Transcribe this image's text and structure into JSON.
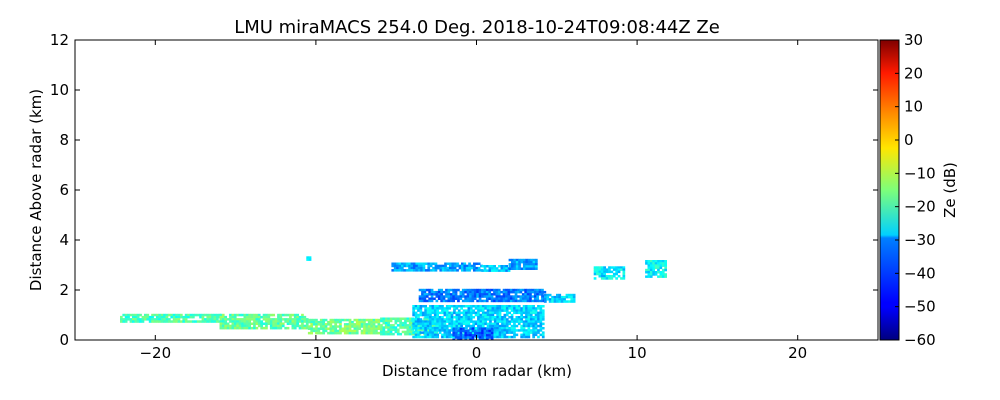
{
  "chart_data": {
    "type": "heatmap",
    "title": "LMU miraMACS 254.0 Deg. 2018-10-24T09:08:44Z  Ze",
    "xlabel": "Distance from radar (km)",
    "ylabel": "Distance Above radar  (km)",
    "xlim": [
      -25,
      25
    ],
    "ylim": [
      0,
      12
    ],
    "xticks": [
      -20,
      -10,
      0,
      10,
      20
    ],
    "xtick_labels": [
      "−20",
      "−10",
      "0",
      "10",
      "20"
    ],
    "yticks": [
      0,
      2,
      4,
      6,
      8,
      10,
      12
    ],
    "ytick_labels": [
      "0",
      "2",
      "4",
      "6",
      "8",
      "10",
      "12"
    ],
    "colorbar": {
      "label": "Ze (dB)",
      "range": [
        -60,
        30
      ],
      "ticks": [
        30,
        20,
        10,
        0,
        -10,
        -20,
        -30,
        -40,
        -50,
        -60
      ],
      "tick_labels": [
        "30",
        "20",
        "10",
        "0",
        "−10",
        "−20",
        "−30",
        "−40",
        "−50",
        "−60"
      ],
      "colormap": "jet"
    },
    "grid": false,
    "echo_regions": [
      {
        "x": [
          -22.2,
          -16.0
        ],
        "y": [
          0.75,
          1.05
        ],
        "ze": -20
      },
      {
        "x": [
          -16.0,
          -10.5
        ],
        "y": [
          0.45,
          1.05
        ],
        "ze": -18
      },
      {
        "x": [
          -10.5,
          -6.0
        ],
        "y": [
          0.3,
          0.85
        ],
        "ze": -16
      },
      {
        "x": [
          -6.0,
          -2.5
        ],
        "y": [
          0.2,
          0.9
        ],
        "ze": -20
      },
      {
        "x": [
          -4.0,
          4.2
        ],
        "y": [
          0.1,
          1.4
        ],
        "ze": -30
      },
      {
        "x": [
          -1.5,
          1.0
        ],
        "y": [
          0.0,
          0.5
        ],
        "ze": -40
      },
      {
        "x": [
          -3.6,
          4.2
        ],
        "y": [
          1.55,
          2.05
        ],
        "ze": -38
      },
      {
        "x": [
          4.2,
          6.0
        ],
        "y": [
          1.55,
          1.85
        ],
        "ze": -30
      },
      {
        "x": [
          -5.3,
          0.3
        ],
        "y": [
          2.75,
          3.1
        ],
        "ze": -34
      },
      {
        "x": [
          0.3,
          2.0
        ],
        "y": [
          2.8,
          3.0
        ],
        "ze": -32
      },
      {
        "x": [
          2.0,
          3.7
        ],
        "y": [
          2.85,
          3.25
        ],
        "ze": -34
      },
      {
        "x": [
          7.3,
          9.2
        ],
        "y": [
          2.45,
          2.95
        ],
        "ze": -28
      },
      {
        "x": [
          10.5,
          11.7
        ],
        "y": [
          2.55,
          3.2
        ],
        "ze": -26
      },
      {
        "x": [
          -10.6,
          -10.4
        ],
        "y": [
          3.2,
          3.35
        ],
        "ze": -28
      }
    ]
  }
}
